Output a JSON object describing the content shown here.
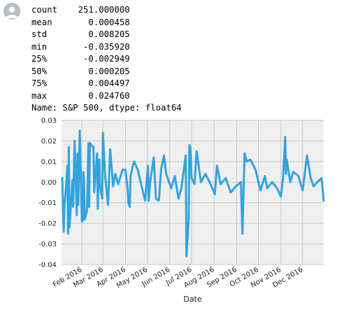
{
  "cell": {
    "avatar_icon": "user-avatar-icon",
    "output_lines": [
      "count    251.000000",
      "mean       0.000458",
      "std        0.008205",
      "min       -0.035920",
      "25%       -0.002949",
      "50%        0.000205",
      "75%        0.004497",
      "max        0.024760",
      "Name: S&P 500, dtype: float64"
    ]
  },
  "chart_data": {
    "type": "line",
    "xlabel": "Date",
    "ylabel": "",
    "ylim": [
      -0.04,
      0.03
    ],
    "yticks": [
      0.03,
      0.02,
      0.01,
      0.0,
      -0.01,
      -0.02,
      -0.03,
      -0.04
    ],
    "ytick_labels": [
      "0.03",
      "0.02",
      "0.01",
      "0.00",
      "-0.01",
      "-0.02",
      "-0.03",
      "-0.04"
    ],
    "xlim": [
      "2016-01-04",
      "2016-12-30"
    ],
    "xticks": [
      "2016-02-01",
      "2016-03-01",
      "2016-04-01",
      "2016-05-01",
      "2016-06-01",
      "2016-07-01",
      "2016-08-01",
      "2016-09-01",
      "2016-10-01",
      "2016-11-01",
      "2016-12-01"
    ],
    "xtick_labels": [
      "Feb 2016",
      "Mar 2016",
      "Apr 2016",
      "May 2016",
      "Jun 2016",
      "Jul 2016",
      "Aug 2016",
      "Sep 2016",
      "Oct 2016",
      "Nov 2016",
      "Dec 2016"
    ],
    "grid": true,
    "line_color": "#34a3db",
    "background": "#efefef",
    "series": [
      {
        "x": [
          "2016-01-05",
          "2016-01-06",
          "2016-01-07",
          "2016-01-08",
          "2016-01-11",
          "2016-01-12",
          "2016-01-13",
          "2016-01-14",
          "2016-01-15",
          "2016-01-19",
          "2016-01-20",
          "2016-01-21",
          "2016-01-22",
          "2016-01-25",
          "2016-01-26",
          "2016-01-27",
          "2016-01-28",
          "2016-01-29",
          "2016-02-01",
          "2016-02-02",
          "2016-02-03",
          "2016-02-04",
          "2016-02-05",
          "2016-02-08",
          "2016-02-09",
          "2016-02-10",
          "2016-02-11",
          "2016-02-12",
          "2016-02-16",
          "2016-02-17",
          "2016-02-18",
          "2016-02-19",
          "2016-02-22",
          "2016-02-23",
          "2016-02-24",
          "2016-02-25",
          "2016-02-26",
          "2016-02-29",
          "2016-03-01",
          "2016-03-04",
          "2016-03-08",
          "2016-03-11",
          "2016-03-15",
          "2016-03-18",
          "2016-03-22",
          "2016-03-28",
          "2016-04-01",
          "2016-04-04",
          "2016-04-05",
          "2016-04-07",
          "2016-04-08",
          "2016-04-12",
          "2016-04-13",
          "2016-04-18",
          "2016-04-22",
          "2016-04-28",
          "2016-05-02",
          "2016-05-03",
          "2016-05-05",
          "2016-05-10",
          "2016-05-13",
          "2016-05-17",
          "2016-05-20",
          "2016-05-24",
          "2016-05-27",
          "2016-06-03",
          "2016-06-08",
          "2016-06-13",
          "2016-06-17",
          "2016-06-23",
          "2016-06-24",
          "2016-06-27",
          "2016-06-28",
          "2016-06-29",
          "2016-06-30",
          "2016-07-01",
          "2016-07-05",
          "2016-07-08",
          "2016-07-14",
          "2016-07-20",
          "2016-07-26",
          "2016-08-02",
          "2016-08-05",
          "2016-08-10",
          "2016-08-17",
          "2016-08-24",
          "2016-08-31",
          "2016-09-07",
          "2016-09-09",
          "2016-09-12",
          "2016-09-15",
          "2016-09-20",
          "2016-09-27",
          "2016-10-04",
          "2016-10-10",
          "2016-10-13",
          "2016-10-20",
          "2016-10-27",
          "2016-11-01",
          "2016-11-04",
          "2016-11-07",
          "2016-11-08",
          "2016-11-09",
          "2016-11-14",
          "2016-11-18",
          "2016-11-25",
          "2016-12-01",
          "2016-12-07",
          "2016-12-12",
          "2016-12-16",
          "2016-12-21",
          "2016-12-27",
          "2016-12-30"
        ],
        "y": [
          0.002,
          -0.013,
          -0.024,
          -0.011,
          0.001,
          0.008,
          -0.025,
          0.017,
          -0.022,
          0.001,
          -0.012,
          0.005,
          0.02,
          -0.016,
          0.014,
          -0.011,
          0.005,
          0.025,
          -0.019,
          -0.019,
          0.005,
          0.001,
          -0.018,
          -0.014,
          0.0,
          0.019,
          -0.012,
          0.019,
          0.017,
          0.017,
          -0.005,
          0.0,
          0.014,
          -0.013,
          0.004,
          0.011,
          -0.002,
          -0.008,
          0.024,
          0.003,
          -0.011,
          0.016,
          -0.002,
          0.004,
          -0.001,
          0.006,
          0.006,
          -0.003,
          -0.01,
          -0.012,
          0.003,
          0.009,
          0.01,
          0.006,
          0.0,
          -0.009,
          0.008,
          -0.009,
          0.0,
          0.012,
          -0.008,
          -0.009,
          0.006,
          0.013,
          0.004,
          -0.003,
          0.003,
          -0.008,
          -0.003,
          0.013,
          -0.036,
          -0.018,
          0.018,
          0.017,
          0.013,
          0.002,
          -0.001,
          0.015,
          0.0,
          0.004,
          0.0,
          -0.006,
          0.008,
          -0.001,
          0.002,
          -0.005,
          -0.002,
          0.0,
          -0.025,
          0.014,
          0.01,
          0.011,
          0.006,
          -0.004,
          0.003,
          -0.003,
          0.0,
          -0.003,
          -0.007,
          0.002,
          0.022,
          0.004,
          0.011,
          0.0,
          0.005,
          0.003,
          -0.004,
          0.013,
          0.002,
          -0.002,
          0.0,
          0.002,
          -0.009
        ]
      }
    ]
  }
}
